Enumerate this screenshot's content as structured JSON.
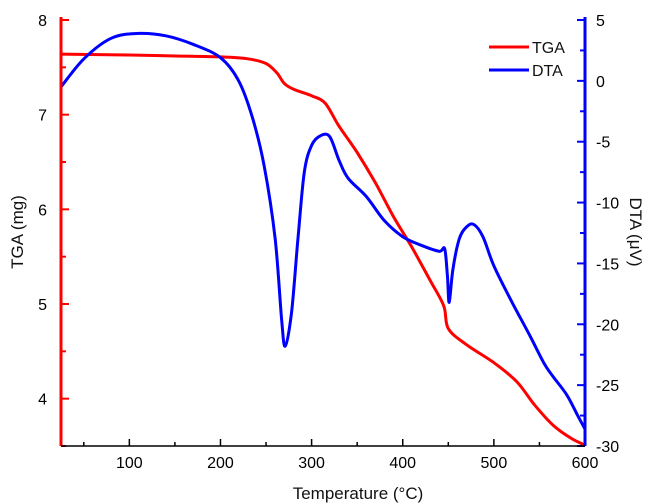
{
  "chart_data": {
    "type": "line",
    "xlabel": "Temperature (°C)",
    "ylabel_left": "TGA (mg)",
    "ylabel_right": "DTA (μV)",
    "xlim": [
      25,
      600
    ],
    "ylim_left": [
      3.5,
      8
    ],
    "ylim_right": [
      -30,
      5
    ],
    "x_ticks": [
      100,
      200,
      300,
      400,
      500,
      600
    ],
    "y_left_ticks": [
      4,
      5,
      6,
      7,
      8
    ],
    "y_right_ticks": [
      5,
      0,
      -5,
      -10,
      -15,
      -20,
      -25,
      -30
    ],
    "legend_position": "top-right",
    "colors": {
      "TGA": "#ff0000",
      "DTA": "#0000ff",
      "left_axis": "#ff0000",
      "right_axis": "#0000ff",
      "bottom_axis": "#000000"
    },
    "series": [
      {
        "name": "TGA",
        "axis": "left",
        "points": [
          [
            25,
            7.64
          ],
          [
            100,
            7.63
          ],
          [
            150,
            7.62
          ],
          [
            200,
            7.61
          ],
          [
            230,
            7.59
          ],
          [
            250,
            7.54
          ],
          [
            262,
            7.44
          ],
          [
            270,
            7.33
          ],
          [
            280,
            7.27
          ],
          [
            300,
            7.2
          ],
          [
            315,
            7.12
          ],
          [
            330,
            6.88
          ],
          [
            350,
            6.6
          ],
          [
            370,
            6.28
          ],
          [
            390,
            5.92
          ],
          [
            410,
            5.6
          ],
          [
            430,
            5.25
          ],
          [
            445,
            4.98
          ],
          [
            450,
            4.74
          ],
          [
            470,
            4.57
          ],
          [
            500,
            4.38
          ],
          [
            525,
            4.18
          ],
          [
            545,
            3.93
          ],
          [
            565,
            3.72
          ],
          [
            585,
            3.58
          ],
          [
            600,
            3.51
          ]
        ]
      },
      {
        "name": "DTA",
        "axis": "right",
        "points": [
          [
            25,
            -0.5
          ],
          [
            50,
            1.8
          ],
          [
            80,
            3.5
          ],
          [
            110,
            3.9
          ],
          [
            140,
            3.7
          ],
          [
            170,
            3.0
          ],
          [
            200,
            1.9
          ],
          [
            220,
            0.0
          ],
          [
            235,
            -3.0
          ],
          [
            248,
            -7.0
          ],
          [
            260,
            -13.0
          ],
          [
            267,
            -19.5
          ],
          [
            271,
            -21.8
          ],
          [
            278,
            -19.0
          ],
          [
            285,
            -13.0
          ],
          [
            292,
            -7.5
          ],
          [
            300,
            -5.3
          ],
          [
            310,
            -4.5
          ],
          [
            320,
            -4.6
          ],
          [
            330,
            -6.5
          ],
          [
            340,
            -8.0
          ],
          [
            360,
            -9.5
          ],
          [
            380,
            -11.5
          ],
          [
            400,
            -12.8
          ],
          [
            420,
            -13.5
          ],
          [
            440,
            -14.0
          ],
          [
            446,
            -13.8
          ],
          [
            449,
            -16.0
          ],
          [
            451,
            -18.2
          ],
          [
            455,
            -15.5
          ],
          [
            462,
            -13.0
          ],
          [
            470,
            -12.0
          ],
          [
            478,
            -11.8
          ],
          [
            488,
            -12.8
          ],
          [
            500,
            -15.2
          ],
          [
            520,
            -18.2
          ],
          [
            540,
            -21.0
          ],
          [
            555,
            -23.2
          ],
          [
            565,
            -24.3
          ],
          [
            580,
            -25.8
          ],
          [
            592,
            -27.5
          ],
          [
            600,
            -28.6
          ]
        ]
      }
    ]
  }
}
